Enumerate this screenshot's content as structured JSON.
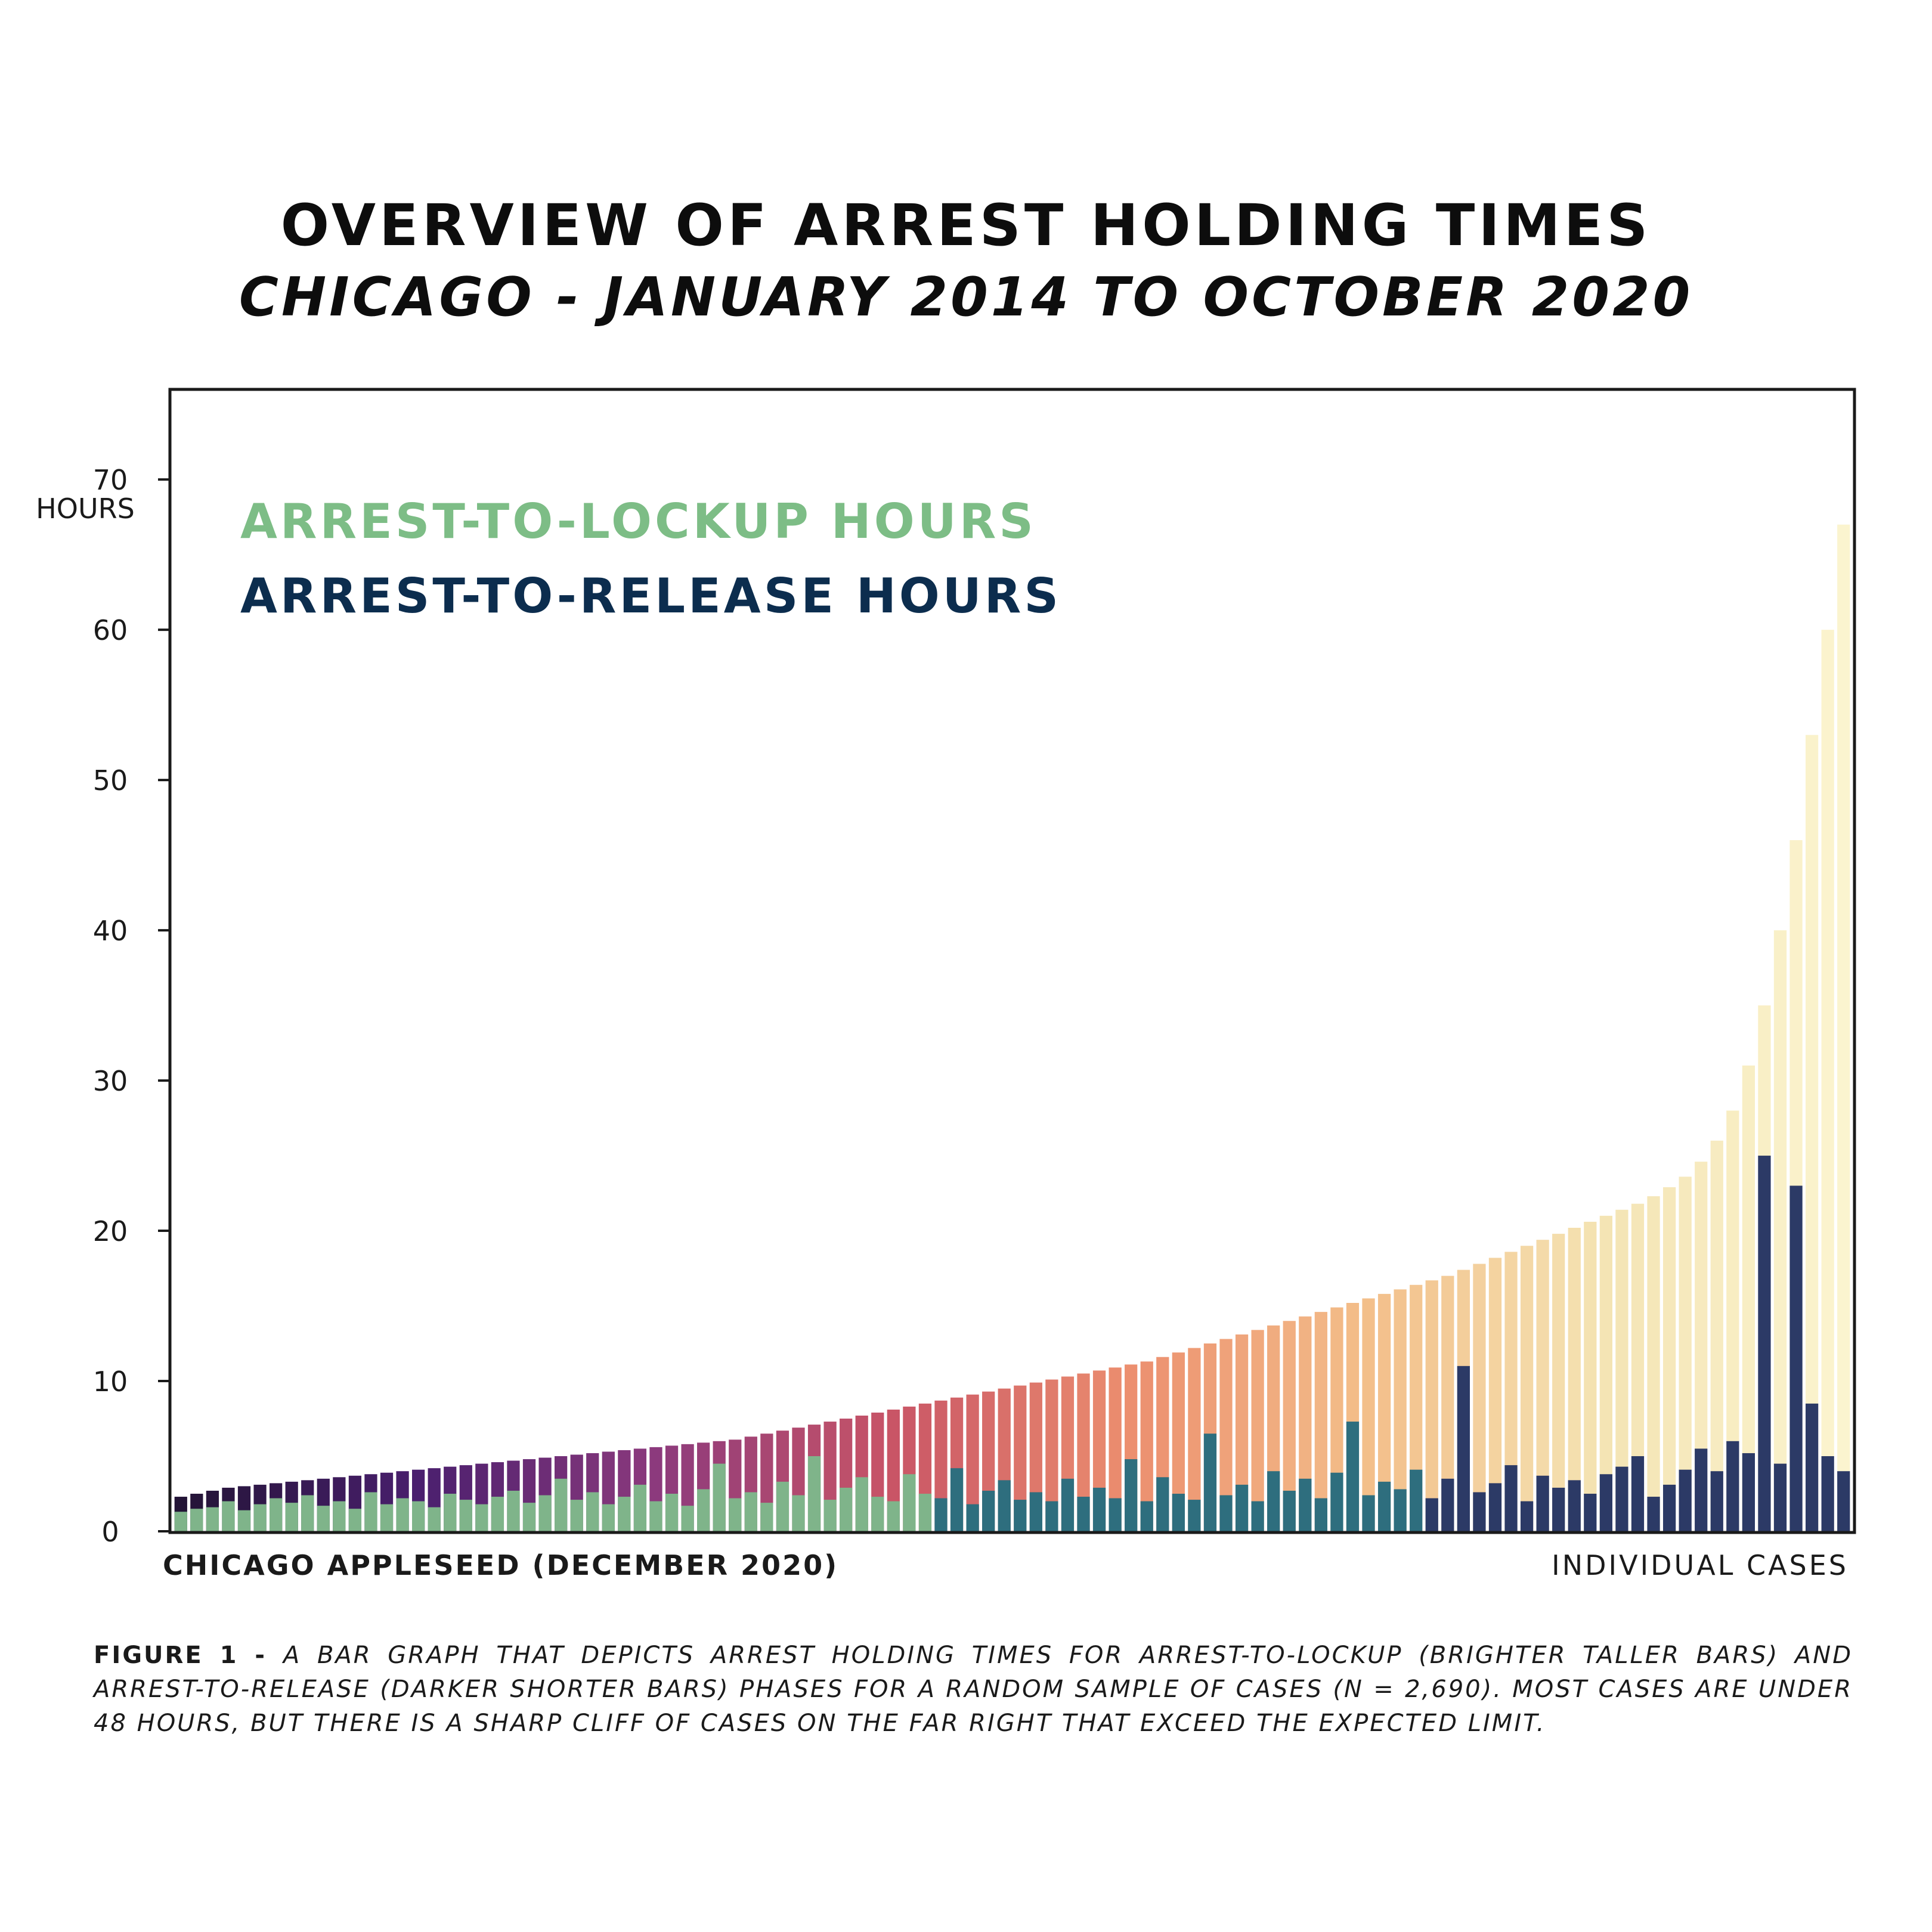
{
  "header": {
    "title": "OVERVIEW OF ARREST HOLDING TIMES",
    "subtitle": "CHICAGO - JANUARY 2014 TO OCTOBER 2020"
  },
  "caption": {
    "lead": "FIGURE 1 - ",
    "text": "A BAR GRAPH THAT DEPICTS ARREST HOLDING TIMES FOR ARREST-TO-LOCKUP (BRIGHTER TALLER BARS) AND ARREST-TO-RELEASE (DARKER SHORTER BARS) PHASES FOR A RANDOM SAMPLE OF CASES (N = 2,690). MOST CASES ARE UNDER 48 HOURS, BUT THERE IS A SHARP CLIFF OF CASES ON THE FAR RIGHT THAT EXCEED THE EXPECTED LIMIT."
  },
  "chart_data": {
    "type": "bar",
    "title": "OVERVIEW OF ARREST HOLDING TIMES",
    "subtitle": "CHICAGO - JANUARY 2014 TO OCTOBER 2020",
    "ylabel": "HOURS",
    "xlabel": "INDIVIDUAL CASES",
    "source": "CHICAGO APPLESEED (DECEMBER 2020)",
    "ylim": [
      0,
      76
    ],
    "yticks": [
      0,
      10,
      20,
      30,
      40,
      50,
      60,
      70
    ],
    "grid": false,
    "legend_position": "top-left",
    "colors": {
      "lockup_legend": "#7dbd86",
      "release_legend": "#0c2d4e",
      "gradient": [
        "#231436",
        "#4a1f6e",
        "#8c3a7d",
        "#c95566",
        "#ec8f6f",
        "#f3bf8a",
        "#f4e4b4",
        "#fbf4cf"
      ]
    },
    "series": [
      {
        "name": "ARREST-TO-LOCKUP HOURS",
        "values": [
          2.3,
          2.5,
          2.7,
          2.9,
          3.0,
          3.1,
          3.2,
          3.3,
          3.4,
          3.5,
          3.6,
          3.7,
          3.8,
          3.9,
          4.0,
          4.1,
          4.2,
          4.3,
          4.4,
          4.5,
          4.6,
          4.7,
          4.8,
          4.9,
          5.0,
          5.1,
          5.2,
          5.3,
          5.4,
          5.5,
          5.6,
          5.7,
          5.8,
          5.9,
          6.0,
          6.1,
          6.3,
          6.5,
          6.7,
          6.9,
          7.1,
          7.3,
          7.5,
          7.7,
          7.9,
          8.1,
          8.3,
          8.5,
          8.7,
          8.9,
          9.1,
          9.3,
          9.5,
          9.7,
          9.9,
          10.1,
          10.3,
          10.5,
          10.7,
          10.9,
          11.1,
          11.3,
          11.6,
          11.9,
          12.2,
          12.5,
          12.8,
          13.1,
          13.4,
          13.7,
          14.0,
          14.3,
          14.6,
          14.9,
          15.2,
          15.5,
          15.8,
          16.1,
          16.4,
          16.7,
          17.0,
          17.4,
          17.8,
          18.2,
          18.6,
          19.0,
          19.4,
          19.8,
          20.2,
          20.6,
          21.0,
          21.4,
          21.8,
          22.3,
          22.9,
          23.6,
          24.6,
          26.0,
          28.0,
          31.0,
          35.0,
          40.0,
          46.0,
          53.0,
          60.0,
          67.0
        ]
      },
      {
        "name": "ARREST-TO-RELEASE HOURS",
        "values": [
          1.3,
          1.5,
          1.6,
          2.0,
          1.4,
          1.8,
          2.2,
          1.9,
          2.4,
          1.7,
          2.0,
          1.5,
          2.6,
          1.8,
          2.2,
          2.0,
          1.6,
          2.5,
          2.1,
          1.8,
          2.3,
          2.7,
          1.9,
          2.4,
          3.5,
          2.1,
          2.6,
          1.8,
          2.3,
          3.1,
          2.0,
          2.5,
          1.7,
          2.8,
          4.5,
          2.2,
          2.6,
          1.9,
          3.3,
          2.4,
          5.0,
          2.1,
          2.9,
          3.6,
          2.3,
          2.0,
          3.8,
          2.5,
          2.2,
          4.2,
          1.8,
          2.7,
          3.4,
          2.1,
          2.6,
          2.0,
          3.5,
          2.3,
          2.9,
          2.2,
          4.8,
          2.0,
          3.6,
          2.5,
          2.1,
          6.5,
          2.4,
          3.1,
          2.0,
          4.0,
          2.7,
          3.5,
          2.2,
          3.9,
          7.3,
          2.4,
          3.3,
          2.8,
          4.1,
          2.2,
          3.5,
          11.0,
          2.6,
          3.2,
          4.4,
          2.0,
          3.7,
          2.9,
          3.4,
          2.5,
          3.8,
          4.3,
          5.0,
          2.3,
          3.1,
          4.1,
          5.5,
          4.0,
          6.0,
          5.2,
          25.0,
          4.5,
          23.0,
          8.5,
          5.0,
          4.0
        ]
      }
    ]
  },
  "axis": {
    "y_unit_label": "HOURS",
    "x_label": "INDIVIDUAL CASES",
    "source_note": "CHICAGO APPLESEED (DECEMBER 2020)"
  }
}
